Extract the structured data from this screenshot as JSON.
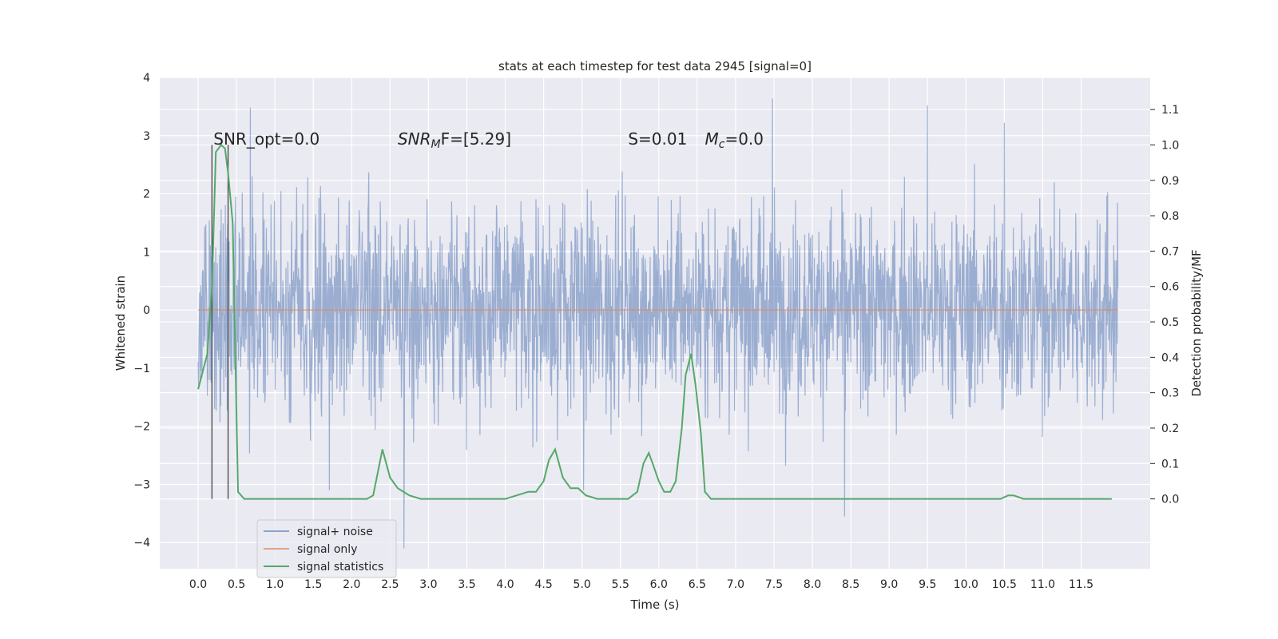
{
  "chart_data": {
    "type": "line",
    "title": "stats at each timestep for test data 2945 [signal=0]",
    "xlabel": "Time (s)",
    "ylabel": "Whitened strain",
    "y2label": "Detection probability/MF",
    "xlim": [
      -0.5,
      12.4
    ],
    "ylim": [
      -4.45,
      4.0
    ],
    "y2lim": [
      -0.19725,
      1.1906
    ],
    "xticks": [
      0.0,
      0.5,
      1.0,
      1.5,
      2.0,
      2.5,
      3.0,
      3.5,
      4.0,
      4.5,
      5.0,
      5.5,
      6.0,
      6.5,
      7.0,
      7.5,
      8.0,
      8.5,
      9.0,
      9.5,
      10.0,
      10.5,
      11.0,
      11.5
    ],
    "xtick_labels": [
      "0.0",
      "0.5",
      "1.0",
      "1.5",
      "2.0",
      "2.5",
      "3.0",
      "3.5",
      "4.0",
      "4.5",
      "5.0",
      "5.5",
      "6.0",
      "6.5",
      "7.0",
      "7.5",
      "8.0",
      "8.5",
      "9.0",
      "9.5",
      "10.0",
      "10.5",
      "11.0",
      "11.5"
    ],
    "yticks": [
      4,
      3,
      2,
      1,
      0,
      -1,
      -2,
      -3,
      -4
    ],
    "ytick_labels": [
      "4",
      "3",
      "2",
      "1",
      "0",
      "−1",
      "−2",
      "−3",
      "−4"
    ],
    "y2ticks": [
      1.1,
      1.0,
      0.9,
      0.8,
      0.7,
      0.6,
      0.5,
      0.4,
      0.3,
      0.2,
      0.1,
      0.0
    ],
    "y2tick_labels": [
      "1.1",
      "1.0",
      "0.9",
      "0.8",
      "0.7",
      "0.6",
      "0.5",
      "0.4",
      "0.3",
      "0.2",
      "0.1",
      "0.0"
    ],
    "grid": true,
    "legend_position": "lower-left",
    "annotations": [
      {
        "text": "SNR_opt=0.0",
        "x": 0.2
      },
      {
        "text": "SNR",
        "sub": "M",
        "rest": "F=[5.29]",
        "x": 2.6
      },
      {
        "text": "S=0.01",
        "x": 5.6
      },
      {
        "text": "M",
        "sub": "c",
        "rest": "=0.0",
        "x": 6.6
      }
    ],
    "vlines": [
      0.18,
      0.39
    ],
    "noise": {
      "name": "signal+ noise",
      "color": "#4c72b0",
      "x_start": 0.0,
      "x_end": 11.98,
      "typical_band": [
        -1.5,
        1.6
      ],
      "extremes": [
        {
          "x": 0.68,
          "y": 3.48
        },
        {
          "x": 7.48,
          "y": 3.64
        },
        {
          "x": 9.5,
          "y": 3.52
        },
        {
          "x": 10.5,
          "y": 3.22
        },
        {
          "x": 2.68,
          "y": -4.1
        },
        {
          "x": 8.42,
          "y": -3.55
        },
        {
          "x": 1.71,
          "y": -3.1
        },
        {
          "x": 5.02,
          "y": -3.1
        }
      ]
    },
    "signal": {
      "name": "signal only",
      "color": "#dd8452",
      "y": 0.0
    },
    "stats": {
      "name": "signal statistics",
      "color": "#55a868",
      "x": [
        0.0,
        0.12,
        0.18,
        0.23,
        0.3,
        0.35,
        0.39,
        0.45,
        0.52,
        0.6,
        0.8,
        1.5,
        2.0,
        2.2,
        2.28,
        2.4,
        2.5,
        2.6,
        2.75,
        2.9,
        3.2,
        4.0,
        4.15,
        4.3,
        4.4,
        4.5,
        4.57,
        4.65,
        4.75,
        4.85,
        4.95,
        5.05,
        5.2,
        5.4,
        5.6,
        5.72,
        5.8,
        5.87,
        5.92,
        6.0,
        6.07,
        6.15,
        6.22,
        6.3,
        6.35,
        6.42,
        6.48,
        6.55,
        6.6,
        6.68,
        6.9,
        7.6,
        8.5,
        9.0,
        10.0,
        10.45,
        10.55,
        10.62,
        10.75,
        11.0,
        11.9
      ],
      "y": [
        0.31,
        0.41,
        0.6,
        0.98,
        1.0,
        0.99,
        0.92,
        0.78,
        0.02,
        0.0,
        0.0,
        0.0,
        0.0,
        0.0,
        0.01,
        0.14,
        0.06,
        0.03,
        0.01,
        0.0,
        0.0,
        0.0,
        0.01,
        0.02,
        0.02,
        0.05,
        0.11,
        0.14,
        0.06,
        0.03,
        0.03,
        0.01,
        0.0,
        0.0,
        0.0,
        0.02,
        0.1,
        0.13,
        0.1,
        0.05,
        0.02,
        0.02,
        0.05,
        0.2,
        0.35,
        0.41,
        0.32,
        0.18,
        0.02,
        0.0,
        0.0,
        0.0,
        0.0,
        0.0,
        0.0,
        0.0,
        0.01,
        0.01,
        0.0,
        0.0,
        0.0
      ]
    }
  }
}
